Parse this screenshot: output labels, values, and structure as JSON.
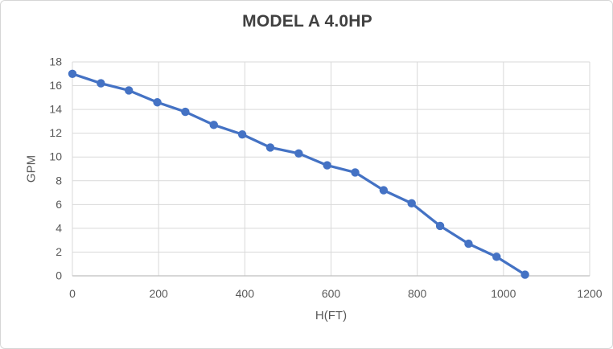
{
  "chart_data": {
    "type": "line",
    "title": "MODEL A 4.0HP",
    "xlabel": "H(FT)",
    "ylabel": "GPM",
    "xlim": [
      0,
      1200
    ],
    "ylim": [
      0,
      18
    ],
    "xticks": [
      0,
      200,
      400,
      600,
      800,
      1000,
      1200
    ],
    "yticks": [
      0,
      2,
      4,
      6,
      8,
      10,
      12,
      14,
      16,
      18
    ],
    "grid": true,
    "legend": false,
    "series": [
      {
        "name": "MODEL A 4.0HP",
        "marker": "circle",
        "x": [
          0,
          66,
          131,
          197,
          262,
          328,
          394,
          459,
          525,
          591,
          656,
          722,
          787,
          853,
          919,
          984,
          1050
        ],
        "y": [
          17.0,
          16.2,
          15.6,
          14.6,
          13.8,
          12.7,
          11.9,
          10.8,
          10.3,
          9.3,
          8.7,
          7.2,
          6.1,
          4.2,
          2.7,
          1.6,
          0.1
        ]
      }
    ],
    "colors": {
      "series_line": "#4472c4",
      "gridline": "#d9d9d9",
      "axis_line": "#bfbfbf",
      "tick_label": "#595959",
      "title": "#404040",
      "background": "#ffffff"
    }
  }
}
